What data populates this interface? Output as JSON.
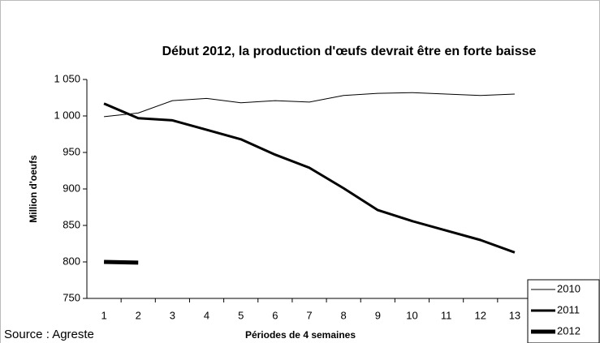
{
  "chart_data": {
    "type": "line",
    "title": "Début 2012, la production d'œufs devrait être en forte baisse",
    "y_label": "Million d'oeufs",
    "x_label": "Périodes de 4 semaines",
    "source": "Source : Agreste",
    "categories": [
      "1",
      "2",
      "3",
      "4",
      "5",
      "6",
      "7",
      "8",
      "9",
      "10",
      "11",
      "12",
      "13"
    ],
    "series": [
      {
        "name": "2010",
        "color": "#000000",
        "linewidth": 1,
        "values": [
          999,
          1004,
          1021,
          1024,
          1018,
          1021,
          1019,
          1028,
          1031,
          1032,
          1030,
          1028,
          1030
        ]
      },
      {
        "name": "2011",
        "color": "#000000",
        "linewidth": 3,
        "values": [
          1017,
          997,
          994,
          981,
          968,
          947,
          929,
          901,
          871,
          856,
          843,
          830,
          813
        ]
      },
      {
        "name": "2012",
        "color": "#000000",
        "linewidth": 5,
        "values": [
          800,
          799,
          null,
          null,
          null,
          null,
          null,
          null,
          null,
          null,
          null,
          null,
          null
        ]
      }
    ],
    "ylim": [
      750,
      1050
    ],
    "yticks": [
      750,
      800,
      850,
      900,
      950,
      {
        "value": 1000,
        "label": "1 000"
      },
      {
        "value": 1050,
        "label": "1 050"
      }
    ],
    "grid": false,
    "legend": "lower right"
  }
}
